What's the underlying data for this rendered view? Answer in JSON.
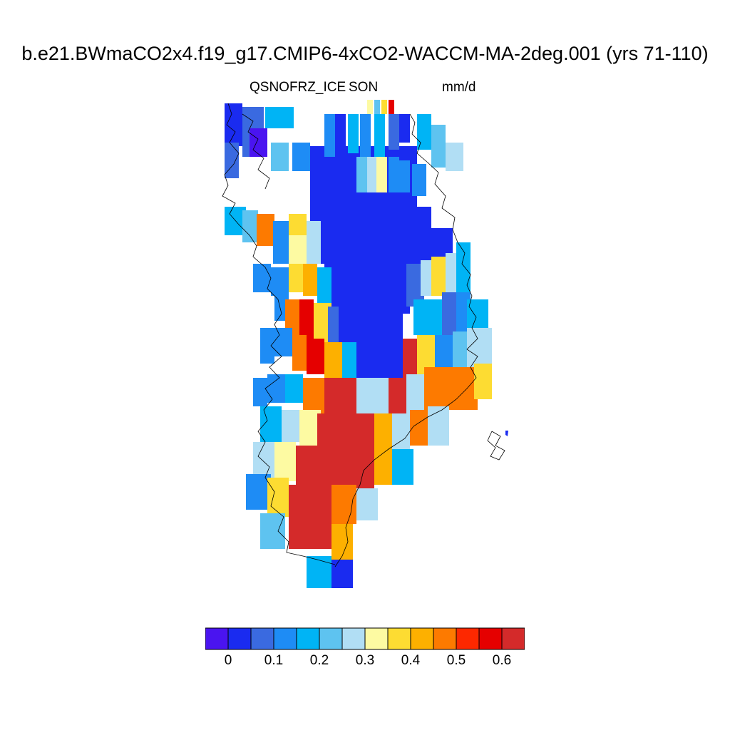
{
  "title": "b.e21.BWmaCO2x4.f19_g17.CMIP6-4xCO2-WACCM-MA-2deg.001 (yrs 71-110)",
  "left_string": "QSNOFRZ_ICE",
  "center_string": "SON",
  "right_string": "mm/d",
  "colorbar": {
    "colors": [
      "#4a14f0",
      "#1a2bf0",
      "#3a6ae0",
      "#1e8cf5",
      "#00b4f5",
      "#5ec3f0",
      "#b1def4",
      "#fdfaa2",
      "#fddc32",
      "#fdb000",
      "#fd7a00",
      "#fd2800",
      "#e50000",
      "#d42a2a"
    ],
    "labels": [
      "0",
      "0.1",
      "0.2",
      "0.3",
      "0.4",
      "0.5",
      "0.6"
    ]
  }
}
